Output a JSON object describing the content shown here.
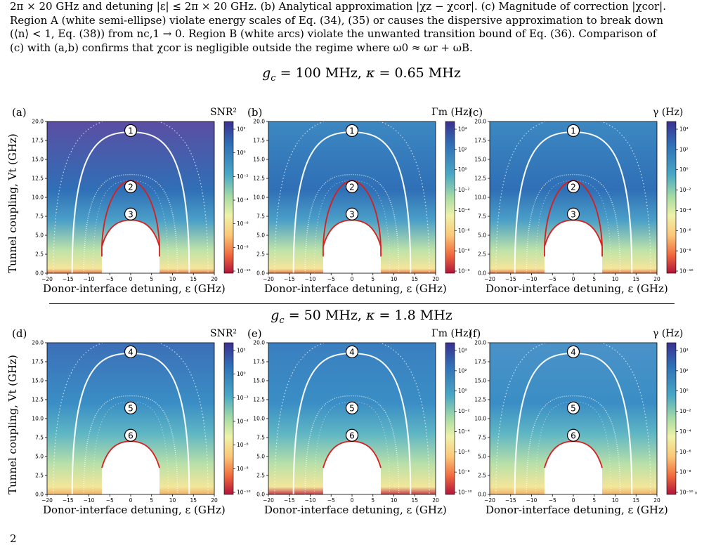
{
  "caption": {
    "line1": "2π × 20 GHz and detuning |ε| ≤ 2π × 20 GHz. (b) Analytical approximation |χz − χcor|. (c) Magnitude of correction |χcor|.",
    "line2": "Region A (white semi-ellipse) violate energy scales of Eq. (34), (35) or causes the dispersive approximation to break down",
    "line3": "(⟨n⟩ < 1, Eq. (38)) from nc,1 → 0. Region B (white arcs) violate the unwanted transition bound of Eq. (36). Comparison of",
    "line4": "(c) with (a,b) confirms that χcor is negligible outside the regime where ω0 ≈ ωr + ωB."
  },
  "rows": [
    {
      "title_g": "g",
      "title_sub": "c",
      "title_rest": " = 100 MHz, ",
      "title_k": "κ",
      "title_krest": " = 0.65 MHz"
    },
    {
      "title_g": "g",
      "title_sub": "c",
      "title_rest": " = 50 MHz, ",
      "title_k": "κ",
      "title_krest": " = 1.8 MHz"
    }
  ],
  "axes": {
    "xlabel": "Donor-interface detuning, ε (GHz)",
    "ylabel": "Tunnel coupling, Vt (GHz)",
    "xticks": [
      "−20",
      "−15",
      "−10",
      "−5",
      "0",
      "5",
      "10",
      "15",
      "20"
    ],
    "yticks": [
      "0.0",
      "2.5",
      "5.0",
      "7.5",
      "10.0",
      "12.5",
      "15.0",
      "17.5",
      "20.0"
    ]
  },
  "panels": [
    {
      "label": "(a)",
      "unit": "SNR²",
      "cticks": [
        "10²",
        "10⁰",
        "10⁻²",
        "10⁻⁴",
        "10⁻⁶",
        "10⁻⁸",
        "10⁻¹⁰"
      ],
      "markers": [
        "1",
        "2",
        "3"
      ]
    },
    {
      "label": "(b)",
      "unit": "Γm (Hz)",
      "cticks": [
        "10⁴",
        "10²",
        "10⁰",
        "10⁻²",
        "10⁻⁴",
        "10⁻⁶",
        "10⁻⁸",
        "10⁻⁰"
      ],
      "markers": [
        "1",
        "2",
        "3"
      ]
    },
    {
      "label": "(c)",
      "unit": "γ (Hz)",
      "cticks": [
        "10⁴",
        "10²",
        "10⁰",
        "10⁻²",
        "10⁻⁴",
        "10⁻⁶",
        "10⁻⁸",
        "10⁻¹⁰"
      ],
      "markers": [
        "1",
        "2",
        "3"
      ]
    },
    {
      "label": "(d)",
      "unit": "SNR²",
      "cticks": [
        "10²",
        "10⁰",
        "10⁻²",
        "10⁻⁴",
        "10⁻⁶",
        "10⁻⁸",
        "10⁻¹⁰"
      ],
      "markers": [
        "4",
        "5",
        "6"
      ]
    },
    {
      "label": "(e)",
      "unit": "Γm (Hz)",
      "cticks": [
        "10⁴",
        "10²",
        "10⁰",
        "10⁻²",
        "10⁻⁴",
        "10⁻⁶",
        "10⁻⁸",
        "10⁻¹⁰"
      ],
      "markers": [
        "4",
        "5",
        "6"
      ]
    },
    {
      "label": "(f)",
      "unit": "γ (Hz)",
      "cticks": [
        "10⁴",
        "10²",
        "10⁰",
        "10⁻²",
        "10⁻⁴",
        "10⁻⁶",
        "10⁻⁸",
        "10⁻¹⁰ ₀"
      ],
      "markers": [
        "4",
        "5",
        "6"
      ]
    }
  ],
  "bottom_fragment": "2"
}
